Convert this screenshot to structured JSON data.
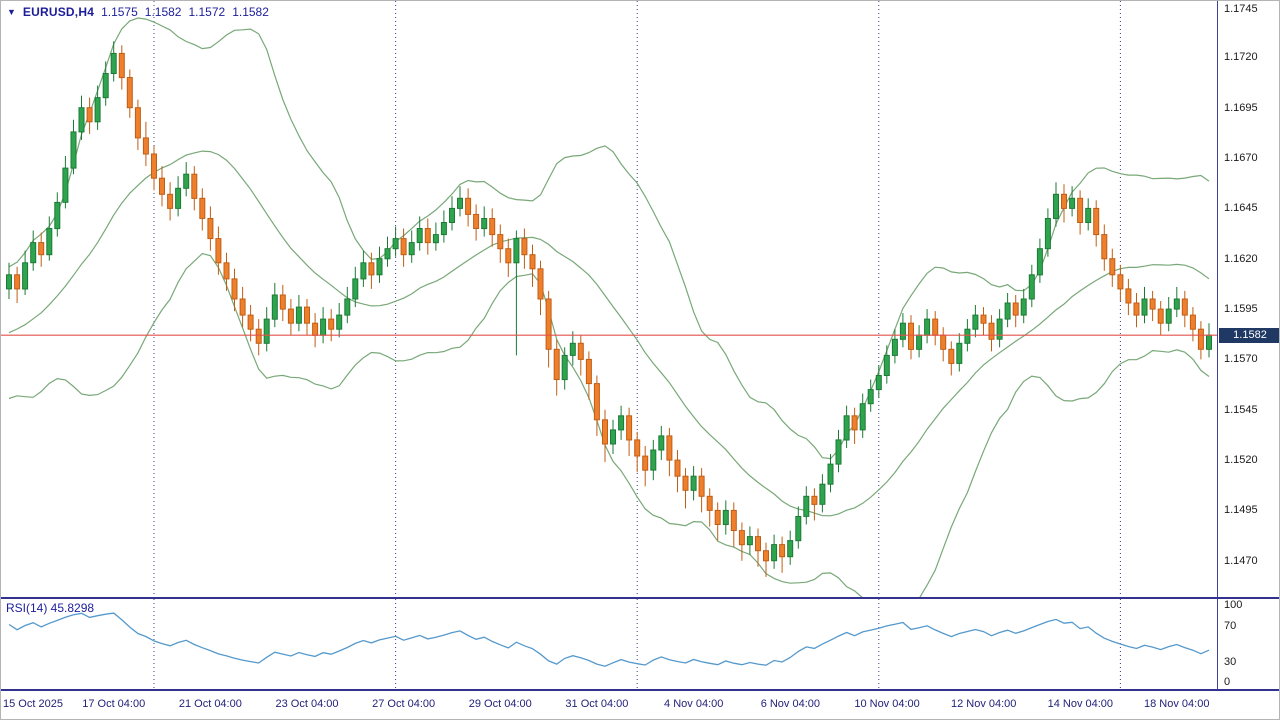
{
  "header": {
    "dropdown_icon": "▼",
    "symbol": "EURUSD,H4",
    "open": "1.1575",
    "high": "1.1582",
    "low": "1.1572",
    "close": "1.1582"
  },
  "colors": {
    "up_fill": "#2fa44f",
    "up_border": "#1c7a36",
    "down_fill": "#ee7f2d",
    "down_border": "#c05e14",
    "band": "#78a878",
    "grid": "#3a3a9e",
    "hline": "#e3524a",
    "rsi_line": "#5599cc",
    "badge_bg": "#1f3864",
    "axis_text": "#1a1a1a",
    "navy_text": "#1d1d9c"
  },
  "chart_data": {
    "type": "candlestick",
    "title": "EURUSD,H4 with Bollinger Bands(20,2) and RSI(14)",
    "ylim": [
      1.1452,
      1.1748
    ],
    "y_ticks": [
      "1.1745",
      "1.1720",
      "1.1695",
      "1.1670",
      "1.1645",
      "1.1620",
      "1.1595",
      "1.1570",
      "1.1545",
      "1.1520",
      "1.1495",
      "1.1470"
    ],
    "current_price": "1.1582",
    "current_price_value": 1.1582,
    "hline": 1.1582,
    "grid_indices": [
      18,
      48,
      78,
      108,
      138
    ],
    "x_ticks": [
      {
        "label": "15 Oct 2025",
        "index": 0
      },
      {
        "label": "17 Oct 04:00",
        "index": 13
      },
      {
        "label": "21 Oct 04:00",
        "index": 25
      },
      {
        "label": "23 Oct 04:00",
        "index": 37
      },
      {
        "label": "27 Oct 04:00",
        "index": 49
      },
      {
        "label": "29 Oct 04:00",
        "index": 61
      },
      {
        "label": "31 Oct 04:00",
        "index": 73
      },
      {
        "label": "4 Nov 04:00",
        "index": 85
      },
      {
        "label": "6 Nov 04:00",
        "index": 97
      },
      {
        "label": "10 Nov 04:00",
        "index": 109
      },
      {
        "label": "12 Nov 04:00",
        "index": 121
      },
      {
        "label": "14 Nov 04:00",
        "index": 133
      },
      {
        "label": "18 Nov 04:00",
        "index": 145
      }
    ],
    "overlays": [
      {
        "name": "Bollinger Bands",
        "period": 20,
        "deviation": 2
      }
    ],
    "rsi": {
      "label": "RSI(14) 45.8298",
      "period": 14,
      "current": 45.8298,
      "ylim": [
        0,
        100
      ],
      "ticks": [
        100,
        70,
        30,
        0
      ]
    },
    "warmup_closes": [
      1.156,
      1.1568,
      1.1575,
      1.157,
      1.1562,
      1.1555,
      1.156,
      1.1568,
      1.1576,
      1.1584,
      1.159,
      1.1584,
      1.1578,
      1.1583,
      1.159,
      1.1597,
      1.1603,
      1.1598,
      1.1604,
      1.1608
    ],
    "candles": [
      [
        1.1605,
        1.1618,
        1.16,
        1.1612
      ],
      [
        1.1612,
        1.1616,
        1.1598,
        1.1605
      ],
      [
        1.1605,
        1.1624,
        1.1602,
        1.1618
      ],
      [
        1.1618,
        1.1634,
        1.1614,
        1.1628
      ],
      [
        1.1628,
        1.1633,
        1.1616,
        1.1622
      ],
      [
        1.1622,
        1.1641,
        1.1619,
        1.1635
      ],
      [
        1.1635,
        1.1653,
        1.1631,
        1.1648
      ],
      [
        1.1648,
        1.1671,
        1.1645,
        1.1665
      ],
      [
        1.1665,
        1.1689,
        1.1662,
        1.1683
      ],
      [
        1.1683,
        1.1701,
        1.1679,
        1.1695
      ],
      [
        1.1695,
        1.17,
        1.1682,
        1.1688
      ],
      [
        1.1688,
        1.1706,
        1.1684,
        1.17
      ],
      [
        1.17,
        1.1718,
        1.1696,
        1.1712
      ],
      [
        1.1712,
        1.1728,
        1.1708,
        1.1722
      ],
      [
        1.1722,
        1.1726,
        1.1704,
        1.171
      ],
      [
        1.171,
        1.1714,
        1.169,
        1.1695
      ],
      [
        1.1695,
        1.1699,
        1.1674,
        1.168
      ],
      [
        1.168,
        1.1688,
        1.1666,
        1.1672
      ],
      [
        1.1672,
        1.1676,
        1.1654,
        1.166
      ],
      [
        1.166,
        1.1666,
        1.1646,
        1.1652
      ],
      [
        1.1652,
        1.1658,
        1.1639,
        1.1645
      ],
      [
        1.1645,
        1.1661,
        1.1641,
        1.1655
      ],
      [
        1.1655,
        1.1668,
        1.1651,
        1.1662
      ],
      [
        1.1662,
        1.1666,
        1.1644,
        1.165
      ],
      [
        1.165,
        1.1655,
        1.1634,
        1.164
      ],
      [
        1.164,
        1.1646,
        1.1624,
        1.163
      ],
      [
        1.163,
        1.1636,
        1.1612,
        1.1618
      ],
      [
        1.1618,
        1.1623,
        1.1604,
        1.161
      ],
      [
        1.161,
        1.1615,
        1.1594,
        1.16
      ],
      [
        1.16,
        1.1606,
        1.1586,
        1.1592
      ],
      [
        1.1592,
        1.1597,
        1.1579,
        1.1585
      ],
      [
        1.1585,
        1.159,
        1.1572,
        1.1578
      ],
      [
        1.1578,
        1.1596,
        1.1574,
        1.159
      ],
      [
        1.159,
        1.1608,
        1.1586,
        1.1602
      ],
      [
        1.1602,
        1.1607,
        1.1589,
        1.1595
      ],
      [
        1.1595,
        1.16,
        1.1582,
        1.1588
      ],
      [
        1.1588,
        1.1602,
        1.1584,
        1.1596
      ],
      [
        1.1596,
        1.16,
        1.1582,
        1.1588
      ],
      [
        1.1588,
        1.1593,
        1.1576,
        1.1582
      ],
      [
        1.1582,
        1.1596,
        1.1578,
        1.159
      ],
      [
        1.159,
        1.1595,
        1.1579,
        1.1585
      ],
      [
        1.1585,
        1.1598,
        1.1581,
        1.1592
      ],
      [
        1.1592,
        1.1606,
        1.1588,
        1.16
      ],
      [
        1.16,
        1.1616,
        1.1596,
        1.161
      ],
      [
        1.161,
        1.1624,
        1.1606,
        1.1618
      ],
      [
        1.1618,
        1.1623,
        1.1605,
        1.1612
      ],
      [
        1.1612,
        1.1626,
        1.1608,
        1.162
      ],
      [
        1.162,
        1.1631,
        1.1616,
        1.1625
      ],
      [
        1.1625,
        1.1636,
        1.1621,
        1.163
      ],
      [
        1.163,
        1.1635,
        1.1616,
        1.1622
      ],
      [
        1.1622,
        1.1634,
        1.1618,
        1.1628
      ],
      [
        1.1628,
        1.1641,
        1.1624,
        1.1635
      ],
      [
        1.1635,
        1.164,
        1.1622,
        1.1628
      ],
      [
        1.1628,
        1.1638,
        1.1624,
        1.1632
      ],
      [
        1.1632,
        1.1644,
        1.1628,
        1.1638
      ],
      [
        1.1638,
        1.1651,
        1.1634,
        1.1645
      ],
      [
        1.1645,
        1.1656,
        1.1641,
        1.165
      ],
      [
        1.165,
        1.1655,
        1.1636,
        1.1642
      ],
      [
        1.1642,
        1.1647,
        1.1629,
        1.1635
      ],
      [
        1.1635,
        1.1646,
        1.1631,
        1.164
      ],
      [
        1.164,
        1.1645,
        1.1626,
        1.1632
      ],
      [
        1.1632,
        1.1637,
        1.1618,
        1.1625
      ],
      [
        1.1625,
        1.163,
        1.1611,
        1.1618
      ],
      [
        1.1618,
        1.1634,
        1.1572,
        1.163
      ],
      [
        1.163,
        1.1635,
        1.1615,
        1.1622
      ],
      [
        1.1622,
        1.1627,
        1.1606,
        1.1615
      ],
      [
        1.1615,
        1.1619,
        1.1592,
        1.16
      ],
      [
        1.16,
        1.1604,
        1.1566,
        1.1575
      ],
      [
        1.1575,
        1.158,
        1.1552,
        1.156
      ],
      [
        1.156,
        1.1576,
        1.1555,
        1.1572
      ],
      [
        1.1572,
        1.1584,
        1.1567,
        1.1578
      ],
      [
        1.1578,
        1.1582,
        1.1562,
        1.157
      ],
      [
        1.157,
        1.1574,
        1.155,
        1.1558
      ],
      [
        1.1558,
        1.1562,
        1.1532,
        1.154
      ],
      [
        1.154,
        1.1545,
        1.1519,
        1.1528
      ],
      [
        1.1528,
        1.154,
        1.1523,
        1.1535
      ],
      [
        1.1535,
        1.1547,
        1.153,
        1.1542
      ],
      [
        1.1542,
        1.1546,
        1.1522,
        1.153
      ],
      [
        1.153,
        1.1534,
        1.1514,
        1.1522
      ],
      [
        1.1522,
        1.1527,
        1.1507,
        1.1515
      ],
      [
        1.1515,
        1.153,
        1.151,
        1.1525
      ],
      [
        1.1525,
        1.1537,
        1.152,
        1.1532
      ],
      [
        1.1532,
        1.1536,
        1.1512,
        1.152
      ],
      [
        1.152,
        1.1525,
        1.1504,
        1.1512
      ],
      [
        1.1512,
        1.1516,
        1.1496,
        1.1505
      ],
      [
        1.1505,
        1.1517,
        1.15,
        1.1512
      ],
      [
        1.1512,
        1.1516,
        1.1494,
        1.1502
      ],
      [
        1.1502,
        1.1506,
        1.1487,
        1.1495
      ],
      [
        1.1495,
        1.1499,
        1.148,
        1.1488
      ],
      [
        1.1488,
        1.15,
        1.1483,
        1.1495
      ],
      [
        1.1495,
        1.1499,
        1.1477,
        1.1485
      ],
      [
        1.1485,
        1.1489,
        1.147,
        1.1478
      ],
      [
        1.1478,
        1.1487,
        1.1473,
        1.1482
      ],
      [
        1.1482,
        1.1486,
        1.1467,
        1.1475
      ],
      [
        1.1475,
        1.1479,
        1.1462,
        1.147
      ],
      [
        1.147,
        1.1483,
        1.1466,
        1.1478
      ],
      [
        1.1478,
        1.1482,
        1.1464,
        1.1472
      ],
      [
        1.1472,
        1.1485,
        1.1468,
        1.148
      ],
      [
        1.148,
        1.1497,
        1.1476,
        1.1492
      ],
      [
        1.1492,
        1.1507,
        1.1488,
        1.1502
      ],
      [
        1.1502,
        1.1506,
        1.149,
        1.1498
      ],
      [
        1.1498,
        1.1513,
        1.1494,
        1.1508
      ],
      [
        1.1508,
        1.1523,
        1.1504,
        1.1518
      ],
      [
        1.1518,
        1.1535,
        1.1514,
        1.153
      ],
      [
        1.153,
        1.1547,
        1.1526,
        1.1542
      ],
      [
        1.1542,
        1.1546,
        1.1528,
        1.1535
      ],
      [
        1.1535,
        1.1553,
        1.1531,
        1.1548
      ],
      [
        1.1548,
        1.156,
        1.1544,
        1.1555
      ],
      [
        1.1555,
        1.1567,
        1.1551,
        1.1562
      ],
      [
        1.1562,
        1.1577,
        1.1558,
        1.1572
      ],
      [
        1.1572,
        1.1585,
        1.1568,
        1.158
      ],
      [
        1.158,
        1.1593,
        1.1576,
        1.1588
      ],
      [
        1.1588,
        1.1592,
        1.157,
        1.1575
      ],
      [
        1.1575,
        1.1587,
        1.1571,
        1.1582
      ],
      [
        1.1582,
        1.1595,
        1.1578,
        1.159
      ],
      [
        1.159,
        1.1594,
        1.1577,
        1.1582
      ],
      [
        1.1582,
        1.1586,
        1.1569,
        1.1575
      ],
      [
        1.1575,
        1.1579,
        1.1562,
        1.1568
      ],
      [
        1.1568,
        1.1583,
        1.1564,
        1.1578
      ],
      [
        1.1578,
        1.159,
        1.1574,
        1.1585
      ],
      [
        1.1585,
        1.1597,
        1.1581,
        1.1592
      ],
      [
        1.1592,
        1.1596,
        1.1582,
        1.1588
      ],
      [
        1.1588,
        1.1592,
        1.1574,
        1.158
      ],
      [
        1.158,
        1.1595,
        1.1576,
        1.159
      ],
      [
        1.159,
        1.1603,
        1.1586,
        1.1598
      ],
      [
        1.1598,
        1.1602,
        1.1586,
        1.1592
      ],
      [
        1.1592,
        1.1605,
        1.1588,
        1.16
      ],
      [
        1.16,
        1.1617,
        1.1596,
        1.1612
      ],
      [
        1.1612,
        1.163,
        1.1608,
        1.1625
      ],
      [
        1.1625,
        1.1645,
        1.1621,
        1.164
      ],
      [
        1.164,
        1.1658,
        1.1636,
        1.1652
      ],
      [
        1.1652,
        1.1657,
        1.1638,
        1.1645
      ],
      [
        1.1645,
        1.1656,
        1.1641,
        1.165
      ],
      [
        1.165,
        1.1654,
        1.1632,
        1.1638
      ],
      [
        1.1638,
        1.165,
        1.1634,
        1.1645
      ],
      [
        1.1645,
        1.1649,
        1.1626,
        1.1632
      ],
      [
        1.1632,
        1.1637,
        1.1614,
        1.162
      ],
      [
        1.162,
        1.1625,
        1.1606,
        1.1612
      ],
      [
        1.1612,
        1.1617,
        1.1599,
        1.1605
      ],
      [
        1.1605,
        1.161,
        1.1592,
        1.1598
      ],
      [
        1.1598,
        1.1603,
        1.1586,
        1.1592
      ],
      [
        1.1592,
        1.1606,
        1.1588,
        1.16
      ],
      [
        1.16,
        1.1604,
        1.1589,
        1.1595
      ],
      [
        1.1595,
        1.1599,
        1.1582,
        1.1588
      ],
      [
        1.1588,
        1.1601,
        1.1584,
        1.1595
      ],
      [
        1.1595,
        1.1606,
        1.1591,
        1.16
      ],
      [
        1.16,
        1.1604,
        1.1586,
        1.1592
      ],
      [
        1.1592,
        1.1596,
        1.1579,
        1.1585
      ],
      [
        1.1585,
        1.1589,
        1.157,
        1.1575
      ],
      [
        1.1575,
        1.1588,
        1.1571,
        1.1582
      ]
    ]
  }
}
